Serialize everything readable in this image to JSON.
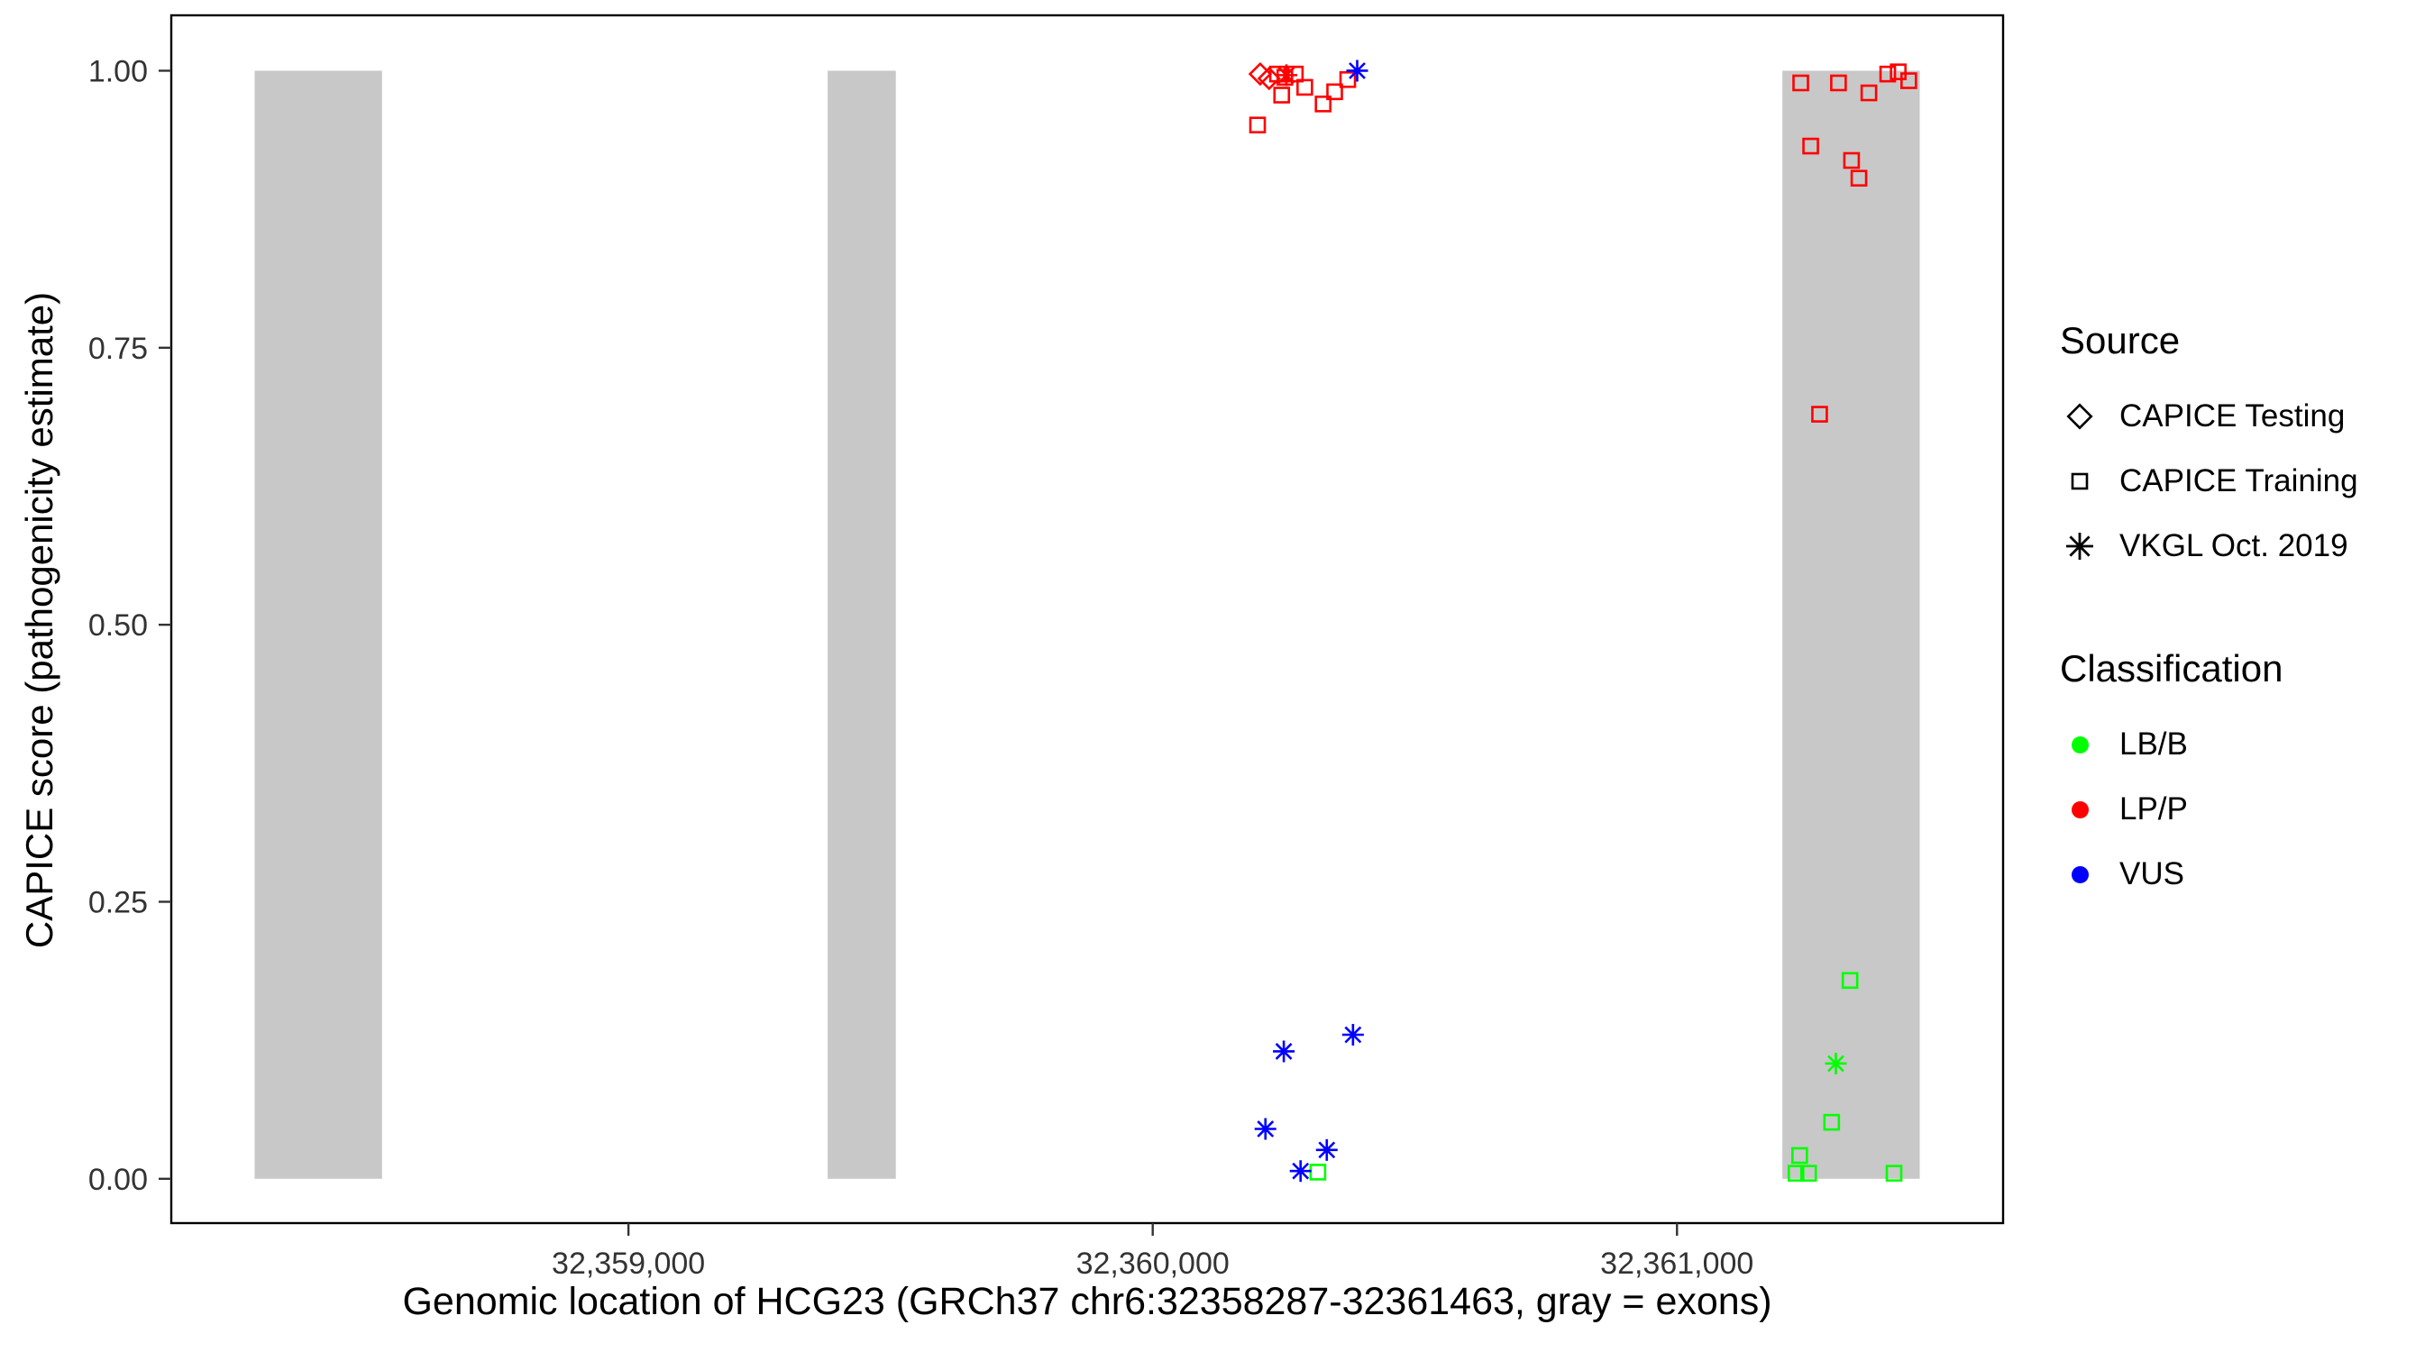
{
  "chart_data": {
    "type": "scatter",
    "title": "",
    "xlabel": "Genomic location of HCG23 (GRCh37 chr6:32358287-32361463, gray = exons)",
    "ylabel": "CAPICE score (pathogenicity estimate)",
    "xlim": [
      32358128,
      32361622
    ],
    "ylim": [
      -0.04,
      1.05
    ],
    "grid": false,
    "x_ticks": [
      {
        "value": 32359000,
        "label": "32,359,000"
      },
      {
        "value": 32360000,
        "label": "32,360,000"
      },
      {
        "value": 32361000,
        "label": "32,361,000"
      }
    ],
    "y_ticks": [
      {
        "value": 0.0,
        "label": "0.00"
      },
      {
        "value": 0.25,
        "label": "0.25"
      },
      {
        "value": 0.5,
        "label": "0.50"
      },
      {
        "value": 0.75,
        "label": "0.75"
      },
      {
        "value": 1.0,
        "label": "1.00"
      }
    ],
    "exon_color": "#C8C8C8",
    "exons": [
      [
        32358287,
        32358530
      ],
      [
        32359380,
        32359510
      ],
      [
        32361201,
        32361463
      ]
    ],
    "classification_colors": {
      "LB/B": "#00FF00",
      "LP/P": "#FF0000",
      "VUS": "#0000FF"
    },
    "series": [
      {
        "name": "CAPICE Testing",
        "shape": "diamond",
        "points": [
          {
            "x": 32360205,
            "y": 0.997,
            "cls": "LP/P"
          },
          {
            "x": 32360222,
            "y": 0.993,
            "cls": "LP/P"
          }
        ]
      },
      {
        "name": "CAPICE Training",
        "shape": "square",
        "points": [
          {
            "x": 32360238,
            "y": 0.997,
            "cls": "LP/P"
          },
          {
            "x": 32360252,
            "y": 0.994,
            "cls": "LP/P"
          },
          {
            "x": 32360246,
            "y": 0.978,
            "cls": "LP/P"
          },
          {
            "x": 32360272,
            "y": 0.997,
            "cls": "LP/P"
          },
          {
            "x": 32360290,
            "y": 0.985,
            "cls": "LP/P"
          },
          {
            "x": 32360200,
            "y": 0.951,
            "cls": "LP/P"
          },
          {
            "x": 32360325,
            "y": 0.97,
            "cls": "LP/P"
          },
          {
            "x": 32360347,
            "y": 0.981,
            "cls": "LP/P"
          },
          {
            "x": 32360372,
            "y": 0.992,
            "cls": "LP/P"
          },
          {
            "x": 32360315,
            "y": 0.006,
            "cls": "LB/B"
          },
          {
            "x": 32361236,
            "y": 0.989,
            "cls": "LP/P"
          },
          {
            "x": 32361308,
            "y": 0.989,
            "cls": "LP/P"
          },
          {
            "x": 32361366,
            "y": 0.98,
            "cls": "LP/P"
          },
          {
            "x": 32361402,
            "y": 0.997,
            "cls": "LP/P"
          },
          {
            "x": 32361422,
            "y": 0.999,
            "cls": "LP/P"
          },
          {
            "x": 32361442,
            "y": 0.991,
            "cls": "LP/P"
          },
          {
            "x": 32361255,
            "y": 0.932,
            "cls": "LP/P"
          },
          {
            "x": 32361333,
            "y": 0.919,
            "cls": "LP/P"
          },
          {
            "x": 32361347,
            "y": 0.903,
            "cls": "LP/P"
          },
          {
            "x": 32361272,
            "y": 0.69,
            "cls": "LP/P"
          },
          {
            "x": 32361330,
            "y": 0.179,
            "cls": "LB/B"
          },
          {
            "x": 32361295,
            "y": 0.051,
            "cls": "LB/B"
          },
          {
            "x": 32361227,
            "y": 0.005,
            "cls": "LB/B"
          },
          {
            "x": 32361251,
            "y": 0.005,
            "cls": "LB/B"
          },
          {
            "x": 32361234,
            "y": 0.021,
            "cls": "LB/B"
          },
          {
            "x": 32361414,
            "y": 0.005,
            "cls": "LB/B"
          }
        ]
      },
      {
        "name": "VKGL Oct. 2019",
        "shape": "asterisk",
        "points": [
          {
            "x": 32360255,
            "y": 0.996,
            "cls": "LP/P"
          },
          {
            "x": 32360390,
            "y": 1.0,
            "cls": "VUS"
          },
          {
            "x": 32360250,
            "y": 0.115,
            "cls": "VUS"
          },
          {
            "x": 32360382,
            "y": 0.13,
            "cls": "VUS"
          },
          {
            "x": 32360215,
            "y": 0.045,
            "cls": "VUS"
          },
          {
            "x": 32360332,
            "y": 0.026,
            "cls": "VUS"
          },
          {
            "x": 32360282,
            "y": 0.007,
            "cls": "VUS"
          },
          {
            "x": 32361303,
            "y": 0.104,
            "cls": "LB/B"
          }
        ]
      }
    ]
  },
  "legend": {
    "source_title": "Source",
    "source_items": [
      {
        "label": "CAPICE Testing",
        "shape": "diamond"
      },
      {
        "label": "CAPICE Training",
        "shape": "square"
      },
      {
        "label": "VKGL Oct. 2019",
        "shape": "asterisk"
      }
    ],
    "classification_title": "Classification",
    "classification_items": [
      {
        "label": "LB/B",
        "color": "#00FF00"
      },
      {
        "label": "LP/P",
        "color": "#FF0000"
      },
      {
        "label": "VUS",
        "color": "#0000FF"
      }
    ]
  }
}
